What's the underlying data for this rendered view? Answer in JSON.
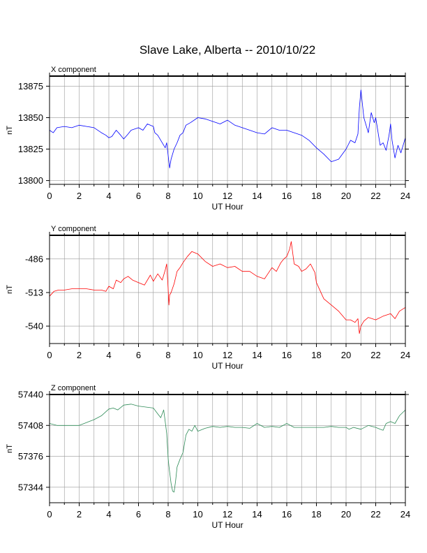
{
  "title": "Slave Lake, Alberta -- 2010/10/22",
  "chart_data": [
    {
      "type": "line",
      "panel_label": "X component",
      "xlabel": "UT Hour",
      "ylabel": "nT",
      "xlim": [
        0,
        24
      ],
      "ylim": [
        13797,
        13883
      ],
      "xticks": [
        0,
        2,
        4,
        6,
        8,
        10,
        12,
        14,
        16,
        18,
        20,
        22,
        24
      ],
      "yticks": [
        13800,
        13825,
        13850,
        13875
      ],
      "grid": true,
      "color": "#0000ff",
      "x": [
        0,
        0.25,
        0.5,
        1,
        1.5,
        2,
        2.5,
        3,
        3.5,
        3.8,
        4,
        4.2,
        4.5,
        4.8,
        5,
        5.3,
        5.5,
        6,
        6.3,
        6.6,
        7,
        7.1,
        7.3,
        7.5,
        7.8,
        7.9,
        8,
        8.1,
        8.2,
        8.4,
        8.6,
        8.8,
        9,
        9.2,
        9.5,
        10,
        10.5,
        11,
        11.5,
        12,
        12.5,
        13,
        13.5,
        14,
        14.5,
        15,
        15.5,
        16,
        16.5,
        17,
        17.5,
        18,
        18.5,
        19,
        19.5,
        20,
        20.3,
        20.6,
        20.8,
        20.9,
        21,
        21.2,
        21.5,
        21.7,
        21.9,
        22,
        22.2,
        22.3,
        22.5,
        22.7,
        22.9,
        23,
        23.1,
        23.3,
        23.5,
        23.7,
        24
      ],
      "y": [
        13840,
        13838,
        13842,
        13843,
        13842,
        13844,
        13843,
        13842,
        13838,
        13836,
        13834,
        13835,
        13840,
        13836,
        13833,
        13837,
        13840,
        13842,
        13840,
        13845,
        13843,
        13838,
        13836,
        13832,
        13826,
        13830,
        13820,
        13810,
        13817,
        13825,
        13830,
        13836,
        13838,
        13844,
        13846,
        13850,
        13849,
        13847,
        13845,
        13848,
        13844,
        13842,
        13840,
        13838,
        13837,
        13842,
        13840,
        13840,
        13838,
        13836,
        13832,
        13826,
        13821,
        13815,
        13817,
        13825,
        13832,
        13830,
        13837,
        13858,
        13872,
        13850,
        13838,
        13854,
        13846,
        13850,
        13835,
        13828,
        13830,
        13824,
        13836,
        13845,
        13832,
        13818,
        13828,
        13822,
        13834
      ]
    },
    {
      "type": "line",
      "panel_label": "Y component",
      "xlabel": "UT Hour",
      "ylabel": "nT",
      "xlim": [
        0,
        24
      ],
      "ylim": [
        -554,
        -467
      ],
      "xticks": [
        0,
        2,
        4,
        6,
        8,
        10,
        12,
        14,
        16,
        18,
        20,
        22,
        24
      ],
      "yticks": [
        -540,
        -513,
        -486
      ],
      "ytick_labels": [
        "-540",
        "-513",
        "-486"
      ],
      "grid": true,
      "color": "#ff0000",
      "x": [
        0,
        0.3,
        0.6,
        1,
        1.5,
        2,
        2.5,
        3,
        3.5,
        3.8,
        4,
        4.3,
        4.5,
        4.8,
        5,
        5.3,
        5.6,
        6,
        6.4,
        6.8,
        7,
        7.3,
        7.6,
        7.8,
        7.9,
        8,
        8.05,
        8.1,
        8.2,
        8.4,
        8.6,
        8.8,
        9,
        9.3,
        9.6,
        10,
        10.5,
        11,
        11.5,
        12,
        12.5,
        13,
        13.5,
        14,
        14.5,
        15,
        15.3,
        15.6,
        15.8,
        16,
        16.2,
        16.3,
        16.5,
        16.8,
        17,
        17.3,
        17.6,
        17.9,
        18,
        18.5,
        19,
        19.5,
        20,
        20.3,
        20.6,
        20.8,
        20.9,
        21,
        21.2,
        21.5,
        22,
        22.5,
        23,
        23.3,
        23.6,
        24
      ],
      "y": [
        -516,
        -512,
        -511,
        -511,
        -510,
        -510,
        -510,
        -511,
        -511,
        -512,
        -508,
        -510,
        -503,
        -505,
        -502,
        -500,
        -503,
        -505,
        -507,
        -499,
        -504,
        -498,
        -503,
        -495,
        -490,
        -510,
        -523,
        -515,
        -513,
        -506,
        -496,
        -493,
        -489,
        -484,
        -480,
        -482,
        -488,
        -492,
        -490,
        -493,
        -492,
        -496,
        -496,
        -500,
        -502,
        -493,
        -496,
        -489,
        -486,
        -484,
        -478,
        -472,
        -490,
        -492,
        -496,
        -494,
        -490,
        -497,
        -505,
        -518,
        -523,
        -528,
        -535,
        -535,
        -537,
        -534,
        -546,
        -540,
        -536,
        -533,
        -535,
        -532,
        -530,
        -534,
        -528,
        -525
      ]
    },
    {
      "type": "line",
      "panel_label": "Z component",
      "xlabel": "UT Hour",
      "ylabel": "nT",
      "xlim": [
        0,
        24
      ],
      "ylim": [
        57328,
        57440
      ],
      "xticks": [
        0,
        2,
        4,
        6,
        8,
        10,
        12,
        14,
        16,
        18,
        20,
        22,
        24
      ],
      "yticks": [
        57344,
        57376,
        57408,
        57440
      ],
      "grid": true,
      "color": "#2e8b57",
      "x": [
        0,
        0.5,
        1,
        2,
        2.5,
        3,
        3.5,
        4,
        4.3,
        4.6,
        5,
        5.5,
        6,
        6.5,
        7,
        7.3,
        7.5,
        7.7,
        7.8,
        7.9,
        8,
        8.05,
        8.1,
        8.2,
        8.3,
        8.4,
        8.5,
        8.6,
        8.8,
        9,
        9.2,
        9.4,
        9.6,
        9.8,
        10,
        10.5,
        11,
        11.5,
        12,
        12.5,
        13,
        13.5,
        14,
        14.5,
        15,
        15.5,
        16,
        16.5,
        17,
        17.5,
        18,
        18.5,
        19,
        19.5,
        20,
        20.2,
        20.5,
        21,
        21.5,
        22,
        22.3,
        22.5,
        22.7,
        23,
        23.3,
        23.6,
        24
      ],
      "y": [
        57410,
        57408,
        57408,
        57408,
        57411,
        57414,
        57418,
        57425,
        57426,
        57424,
        57429,
        57430,
        57428,
        57427,
        57426,
        57420,
        57416,
        57424,
        57412,
        57400,
        57374,
        57366,
        57360,
        57348,
        57340,
        57339,
        57350,
        57365,
        57373,
        57380,
        57398,
        57404,
        57402,
        57408,
        57402,
        57405,
        57407,
        57406,
        57407,
        57406,
        57406,
        57405,
        57410,
        57406,
        57407,
        57406,
        57410,
        57406,
        57406,
        57406,
        57406,
        57406,
        57407,
        57406,
        57406,
        57404,
        57406,
        57404,
        57408,
        57406,
        57404,
        57403,
        57410,
        57412,
        57410,
        57418,
        57424
      ]
    }
  ]
}
